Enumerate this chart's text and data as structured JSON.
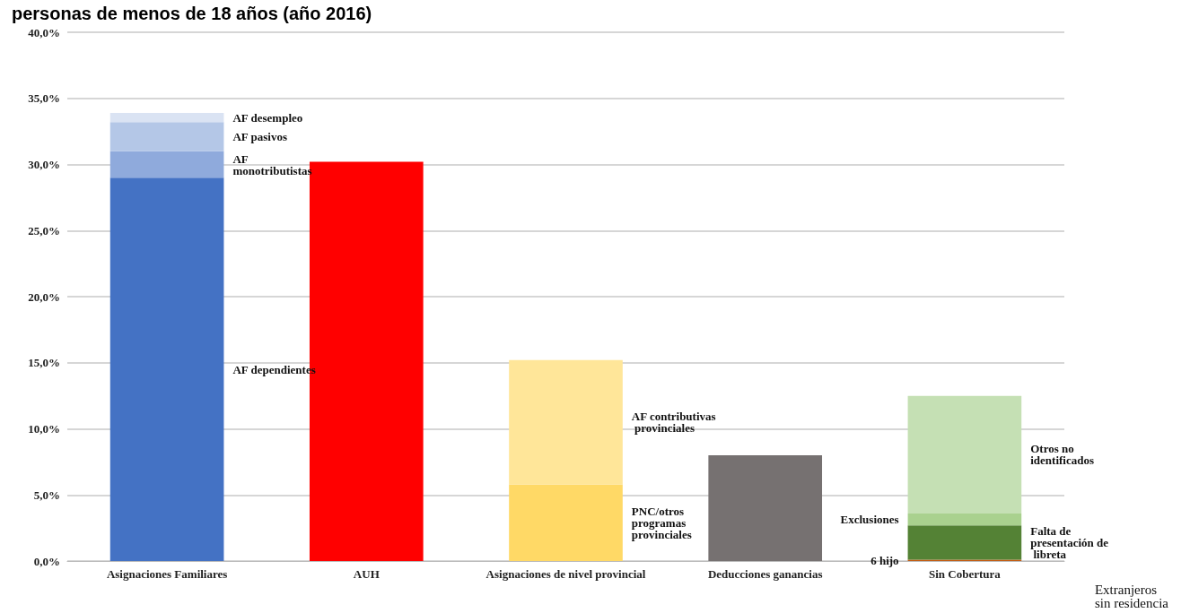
{
  "chart_data": {
    "type": "bar",
    "title": "personas de menos de 18 años (año 2016)",
    "stacked": true,
    "grid": "y",
    "legend": false,
    "categories": [
      "Asignaciones Familiares",
      "AUH",
      "Asignaciones de nivel provincial",
      "Deducciones ganancias",
      "Sin Cobertura"
    ],
    "ylim": [
      0,
      40
    ],
    "yticks": [
      {
        "value": 0,
        "label": "0,0%"
      },
      {
        "value": 5,
        "label": "5,0%"
      },
      {
        "value": 10,
        "label": "10,0%"
      },
      {
        "value": 15,
        "label": "15,0%"
      },
      {
        "value": 20,
        "label": "20,0%"
      },
      {
        "value": 25,
        "label": "25,0%"
      },
      {
        "value": 30,
        "label": "30,0%"
      },
      {
        "value": 35,
        "label": "35,0%"
      },
      {
        "value": 40,
        "label": "40,0%"
      }
    ],
    "series": [
      {
        "name": "AF dependientes",
        "color": "#4472c4",
        "values": [
          29.0,
          null,
          null,
          null,
          null
        ]
      },
      {
        "name": "AF monotributistas",
        "color": "#8faadc",
        "values": [
          2.0,
          null,
          null,
          null,
          null
        ]
      },
      {
        "name": "AF pasivos",
        "color": "#b4c7e7",
        "values": [
          2.2,
          null,
          null,
          null,
          null
        ]
      },
      {
        "name": "AF desempleo",
        "color": "#dae3f3",
        "values": [
          0.7,
          null,
          null,
          null,
          null
        ]
      },
      {
        "color": "#ff0000",
        "values": [
          null,
          30.2,
          null,
          null,
          null
        ]
      },
      {
        "name": "PNC/otros programas provinciales",
        "color": "#ffd966",
        "values": [
          null,
          null,
          5.8,
          null,
          null
        ]
      },
      {
        "name": "AF contributivas provinciales",
        "color": "#ffe699",
        "values": [
          null,
          null,
          9.4,
          null,
          null
        ]
      },
      {
        "color": "#767171",
        "values": [
          null,
          null,
          null,
          8.0,
          null
        ]
      },
      {
        "name": "6 hijo",
        "color": "#c55a11",
        "values": [
          null,
          null,
          null,
          null,
          0.1
        ]
      },
      {
        "name": "Falta de presentación de libreta",
        "color": "#548235",
        "values": [
          null,
          null,
          null,
          null,
          2.6
        ]
      },
      {
        "name": "Exclusiones",
        "color": "#a9d18e",
        "values": [
          null,
          null,
          null,
          null,
          0.9
        ]
      },
      {
        "name": "Otros no identificados",
        "color": "#c5e0b4",
        "values": [
          null,
          null,
          null,
          null,
          8.9
        ]
      }
    ],
    "annotations": [
      "Extranjeros sin residencia"
    ]
  }
}
